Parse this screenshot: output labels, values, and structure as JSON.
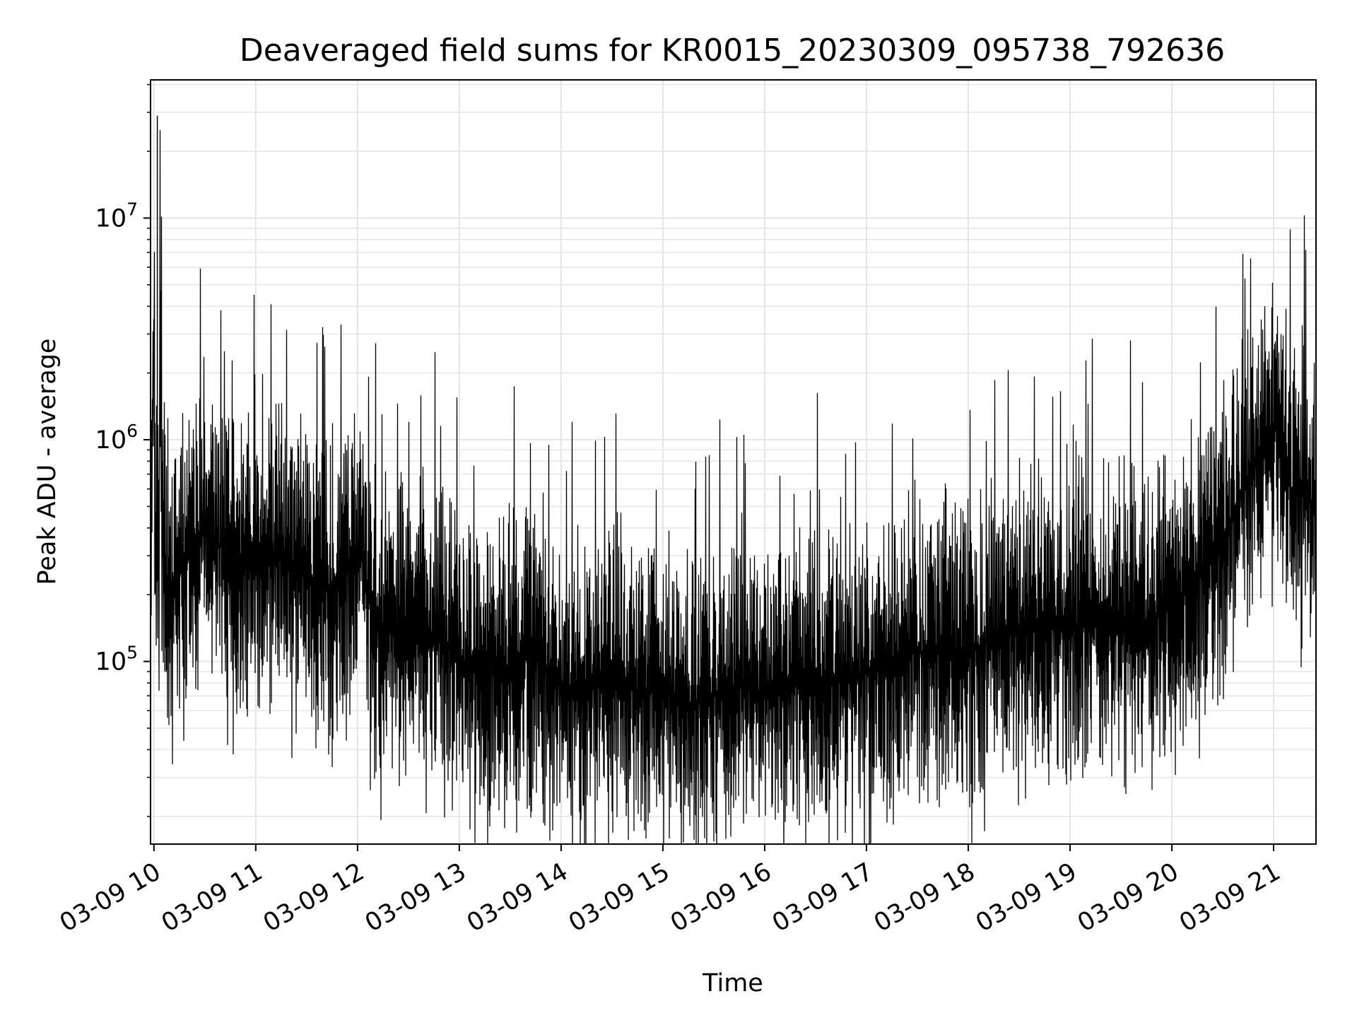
{
  "chart_data": {
    "type": "line",
    "title": "Deaveraged field sums for KR0015_20230309_095738_792636",
    "xlabel": "Time",
    "ylabel": "Peak ADU - average",
    "x_tick_labels": [
      "03-09 10",
      "03-09 11",
      "03-09 12",
      "03-09 13",
      "03-09 14",
      "03-09 15",
      "03-09 16",
      "03-09 17",
      "03-09 18",
      "03-09 19",
      "03-09 20",
      "03-09 21"
    ],
    "x_tick_times": [
      "2023-03-09T10:00",
      "2023-03-09T11:00",
      "2023-03-09T12:00",
      "2023-03-09T13:00",
      "2023-03-09T14:00",
      "2023-03-09T15:00",
      "2023-03-09T16:00",
      "2023-03-09T17:00",
      "2023-03-09T18:00",
      "2023-03-09T19:00",
      "2023-03-09T20:00",
      "2023-03-09T21:00"
    ],
    "y_tick_labels": [
      {
        "base": "10",
        "exp": "5",
        "value": 100000
      },
      {
        "base": "10",
        "exp": "6",
        "value": 1000000
      },
      {
        "base": "10",
        "exp": "7",
        "value": 10000000
      }
    ],
    "xlim": [
      "2023-03-09T09:58",
      "2023-03-09T21:25"
    ],
    "ylim": [
      15000,
      42000000
    ],
    "yscale": "log",
    "grid": true,
    "grid_minor": true,
    "legend": "none",
    "line_color": "#000000",
    "grid_color": "#e5e5e5",
    "series": [
      {
        "x": [
          "2023-03-09T09:58",
          "2023-03-09T10:02",
          "2023-03-09T10:05",
          "2023-03-09T10:10",
          "2023-03-09T10:15",
          "2023-03-09T10:20",
          "2023-03-09T10:30",
          "2023-03-09T10:45",
          "2023-03-09T11:00",
          "2023-03-09T11:15",
          "2023-03-09T11:30",
          "2023-03-09T11:45",
          "2023-03-09T12:00",
          "2023-03-09T12:10",
          "2023-03-09T12:30",
          "2023-03-09T12:45",
          "2023-03-09T13:00",
          "2023-03-09T13:15",
          "2023-03-09T13:30",
          "2023-03-09T13:45",
          "2023-03-09T14:00",
          "2023-03-09T14:15",
          "2023-03-09T14:30",
          "2023-03-09T14:45",
          "2023-03-09T15:00",
          "2023-03-09T15:15",
          "2023-03-09T15:30",
          "2023-03-09T15:45",
          "2023-03-09T16:00",
          "2023-03-09T16:15",
          "2023-03-09T16:30",
          "2023-03-09T16:45",
          "2023-03-09T17:00",
          "2023-03-09T17:15",
          "2023-03-09T17:30",
          "2023-03-09T17:45",
          "2023-03-09T18:00",
          "2023-03-09T18:15",
          "2023-03-09T18:30",
          "2023-03-09T18:45",
          "2023-03-09T19:00",
          "2023-03-09T19:15",
          "2023-03-09T19:30",
          "2023-03-09T19:45",
          "2023-03-09T20:00",
          "2023-03-09T20:15",
          "2023-03-09T20:30",
          "2023-03-09T20:45",
          "2023-03-09T21:00",
          "2023-03-09T21:10",
          "2023-03-09T21:25"
        ],
        "y": [
          500000,
          29000000,
          300000,
          200000,
          250000,
          300000,
          400000,
          300000,
          250000,
          300000,
          250000,
          200000,
          350000,
          150000,
          120000,
          130000,
          100000,
          100000,
          90000,
          110000,
          80000,
          70000,
          90000,
          70000,
          80000,
          65000,
          70000,
          80000,
          70000,
          75000,
          85000,
          80000,
          90000,
          100000,
          110000,
          120000,
          110000,
          130000,
          140000,
          150000,
          140000,
          150000,
          150000,
          140000,
          180000,
          250000,
          350000,
          700000,
          1200000,
          600000,
          500000
        ]
      }
    ]
  }
}
